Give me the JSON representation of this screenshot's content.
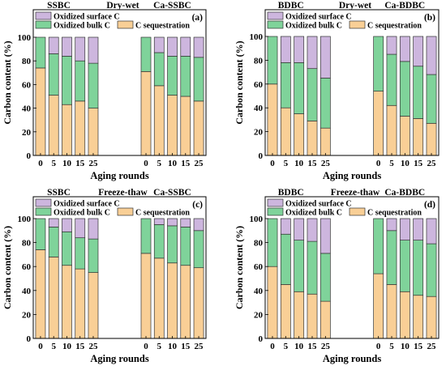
{
  "colors": {
    "sequestration": "#F9CF96",
    "bulk": "#7FD39A",
    "surface": "#CDB6DE",
    "edge": "#333333"
  },
  "chart_data": [
    {
      "type": "bar",
      "stacked": true,
      "panel_label": "(a)",
      "group_labels": [
        "SSBC",
        "Dry-wet",
        "Ca-SSBC"
      ],
      "legend": [
        "Oxidized surface C",
        "Oxidized bulk C",
        "C sequestration"
      ],
      "xlabel": "Aging rounds",
      "ylabel": "Carbon content (%)",
      "ylim": [
        0,
        100
      ],
      "yticks": [
        0,
        20,
        40,
        60,
        80,
        100
      ],
      "groups": [
        {
          "categories": [
            "0",
            "5",
            "10",
            "15",
            "25"
          ],
          "sequestration": [
            74,
            51,
            43,
            46,
            40
          ],
          "bulk": [
            26,
            35,
            41,
            34,
            38
          ],
          "surface": [
            0,
            14,
            16,
            20,
            22
          ]
        },
        {
          "categories": [
            "0",
            "5",
            "10",
            "15",
            "25"
          ],
          "sequestration": [
            71,
            59,
            51,
            50,
            46
          ],
          "bulk": [
            29,
            28,
            33,
            34,
            37
          ],
          "surface": [
            0,
            13,
            16,
            16,
            17
          ]
        }
      ]
    },
    {
      "type": "bar",
      "stacked": true,
      "panel_label": "(b)",
      "group_labels": [
        "BDBC",
        "Dry-wet",
        "Ca-BDBC"
      ],
      "legend": [
        "Oxidized surface C",
        "Oxidized bulk C",
        "C sequestration"
      ],
      "xlabel": "Aging rounds",
      "ylabel": "Carbon content (%)",
      "ylim": [
        0,
        100
      ],
      "yticks": [
        0,
        20,
        40,
        60,
        80,
        100
      ],
      "groups": [
        {
          "categories": [
            "0",
            "5",
            "10",
            "15",
            "25"
          ],
          "sequestration": [
            60,
            40,
            35,
            29,
            23
          ],
          "bulk": [
            40,
            38,
            43,
            44,
            42
          ],
          "surface": [
            0,
            22,
            22,
            27,
            35
          ]
        },
        {
          "categories": [
            "0",
            "5",
            "10",
            "15",
            "25"
          ],
          "sequestration": [
            54,
            42,
            33,
            31,
            27
          ],
          "bulk": [
            46,
            43,
            46,
            44,
            41
          ],
          "surface": [
            0,
            15,
            21,
            25,
            32
          ]
        }
      ]
    },
    {
      "type": "bar",
      "stacked": true,
      "panel_label": "(c)",
      "group_labels": [
        "SSBC",
        "Freeze-thaw",
        "Ca-SSBC"
      ],
      "legend": [
        "Oxidized surface C",
        "Oxidized bulk C",
        "C sequestration"
      ],
      "xlabel": "Aging rounds",
      "ylabel": "Carbon content (%)",
      "ylim": [
        0,
        100
      ],
      "yticks": [
        0,
        20,
        40,
        60,
        80,
        100
      ],
      "groups": [
        {
          "categories": [
            "0",
            "5",
            "10",
            "15",
            "25"
          ],
          "sequestration": [
            74,
            68,
            61,
            58,
            55
          ],
          "bulk": [
            26,
            25,
            28,
            26,
            28
          ],
          "surface": [
            0,
            7,
            11,
            16,
            17
          ]
        },
        {
          "categories": [
            "0",
            "5",
            "10",
            "15",
            "25"
          ],
          "sequestration": [
            71,
            67,
            63,
            61,
            59
          ],
          "bulk": [
            29,
            28,
            31,
            32,
            31
          ],
          "surface": [
            0,
            5,
            6,
            7,
            10
          ]
        }
      ]
    },
    {
      "type": "bar",
      "stacked": true,
      "panel_label": "(d)",
      "group_labels": [
        "BDBC",
        "Freeze-thaw",
        "Ca-BDBC"
      ],
      "legend": [
        "Oxidized surface C",
        "Oxidized bulk C",
        "C sequestration"
      ],
      "xlabel": "Aging rounds",
      "ylabel": "Carbon content (%)",
      "ylim": [
        0,
        100
      ],
      "yticks": [
        0,
        20,
        40,
        60,
        80,
        100
      ],
      "groups": [
        {
          "categories": [
            "0",
            "5",
            "10",
            "15",
            "25"
          ],
          "sequestration": [
            60,
            45,
            39,
            37,
            31
          ],
          "bulk": [
            40,
            42,
            43,
            44,
            40
          ],
          "surface": [
            0,
            13,
            18,
            19,
            29
          ]
        },
        {
          "categories": [
            "0",
            "5",
            "10",
            "15",
            "25"
          ],
          "sequestration": [
            54,
            45,
            39,
            36,
            35
          ],
          "bulk": [
            46,
            45,
            43,
            46,
            44
          ],
          "surface": [
            0,
            10,
            18,
            18,
            21
          ]
        }
      ]
    }
  ]
}
